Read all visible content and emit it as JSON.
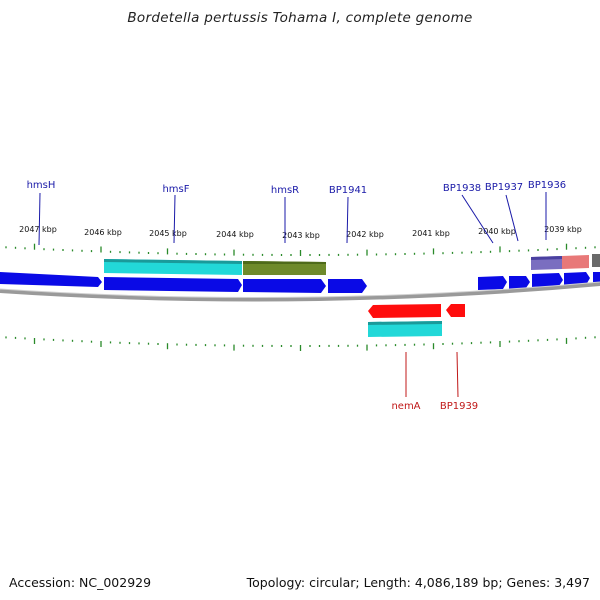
{
  "title": "Bordetella pertussis Tohama I, complete genome",
  "footer": {
    "accession": "Accession: NC_002929",
    "info": "Topology: circular; Length: 4,086,189 bp; Genes: 3,497"
  },
  "colors": {
    "forward_gene": "#0a0ae6",
    "reverse_gene": "#ff0d0d",
    "forward_label": "#1a1aa8",
    "reverse_label": "#c01818",
    "feature_cyan": "#22d8d8",
    "feature_olive": "#6e8a2a",
    "feature_purple": "#7a6ec0",
    "feature_pink": "#e87878",
    "backbone": "#888888",
    "tick": "#2a8a2a"
  },
  "scale_labels": [
    "2047 kbp",
    "2046 kbp",
    "2045 kbp",
    "2044 kbp",
    "2043 kbp",
    "2042 kbp",
    "2041 kbp",
    "2040 kbp",
    "2039 kbp"
  ],
  "forward_gene_labels": [
    "hmsH",
    "hmsF",
    "hmsR",
    "BP1941",
    "BP1938",
    "BP1937",
    "BP1936"
  ],
  "reverse_gene_labels": [
    "nemA",
    "BP1939"
  ]
}
